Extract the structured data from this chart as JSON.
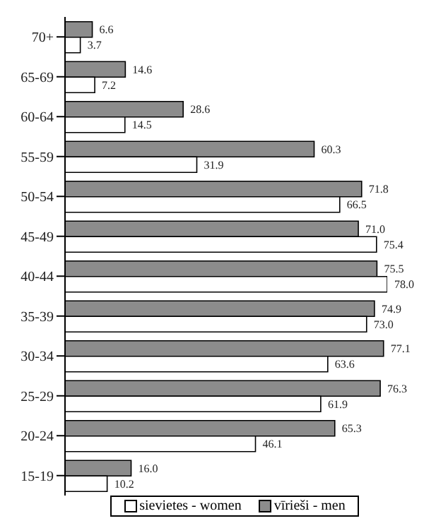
{
  "chart_data": {
    "type": "bar",
    "orientation": "horizontal",
    "categories": [
      "70+",
      "65-69",
      "60-64",
      "55-59",
      "50-54",
      "45-49",
      "40-44",
      "35-39",
      "30-34",
      "25-29",
      "20-24",
      "15-19"
    ],
    "series": [
      {
        "name": "sievietes - women",
        "color": "#ffffff",
        "values": [
          3.7,
          7.2,
          14.5,
          31.9,
          66.5,
          75.4,
          78.0,
          73.0,
          63.6,
          61.9,
          46.1,
          10.2
        ],
        "value_labels": [
          "3.7",
          "7.2",
          "14.5",
          "31.9",
          "66.5",
          "75.4",
          "78.0",
          "73.0",
          "63.6",
          "61.9",
          "46.1",
          "10.2"
        ]
      },
      {
        "name": "vīrieši - men",
        "color": "#8c8c8c",
        "values": [
          6.6,
          14.6,
          28.6,
          60.3,
          71.8,
          71.0,
          75.5,
          74.9,
          77.1,
          76.3,
          65.3,
          16.0
        ],
        "value_labels": [
          "6.6",
          "14.6",
          "28.6",
          "60.3",
          "71.8",
          "71.0",
          "75.5",
          "74.9",
          "77.1",
          "76.3",
          "65.3",
          "16.0"
        ]
      }
    ],
    "legend": "bottom"
  }
}
